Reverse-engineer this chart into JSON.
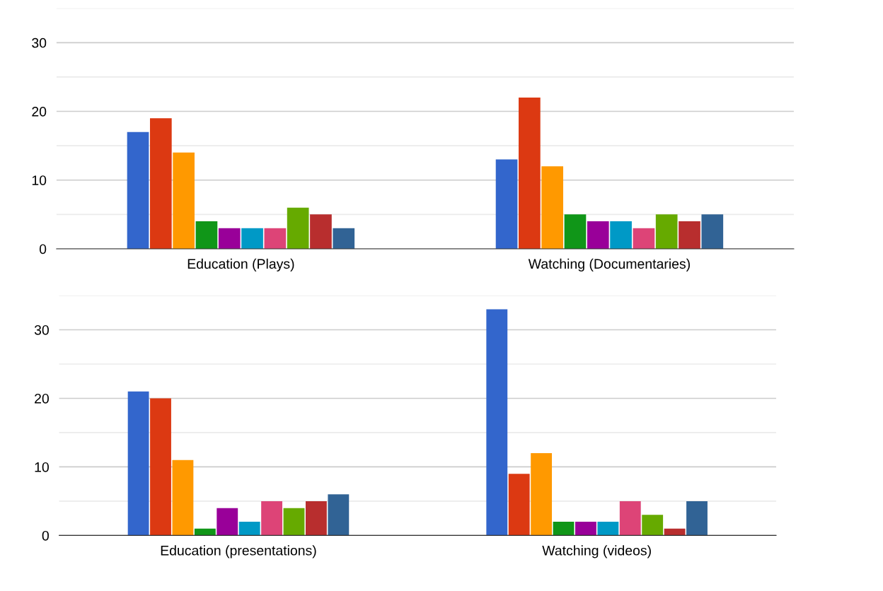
{
  "chart_data": [
    {
      "type": "bar",
      "categories": [
        "Education (Plays)",
        "Watching (Documentaries)"
      ],
      "ylim": [
        0,
        35
      ],
      "yticks": [
        0,
        {
          "value": 5,
          "label": null
        },
        10,
        {
          "value": 15,
          "label": null
        },
        20,
        {
          "value": 25,
          "label": null
        },
        30,
        {
          "value": 35,
          "label": null
        }
      ],
      "grid": "y",
      "series": [
        {
          "color": "#3366cc",
          "values": [
            17,
            13
          ]
        },
        {
          "color": "#dc3912",
          "values": [
            19,
            22
          ]
        },
        {
          "color": "#ff9900",
          "values": [
            14,
            12
          ]
        },
        {
          "color": "#109618",
          "values": [
            4,
            5
          ]
        },
        {
          "color": "#990099",
          "values": [
            3,
            4
          ]
        },
        {
          "color": "#0099c6",
          "values": [
            3,
            4
          ]
        },
        {
          "color": "#dd4477",
          "values": [
            3,
            3
          ]
        },
        {
          "color": "#66aa00",
          "values": [
            6,
            5
          ]
        },
        {
          "color": "#b82e2e",
          "values": [
            5,
            4
          ]
        },
        {
          "color": "#316395",
          "values": [
            3,
            5
          ]
        }
      ]
    },
    {
      "type": "bar",
      "categories": [
        "Education (presentations)",
        "Watching (videos)"
      ],
      "ylim": [
        0,
        35
      ],
      "yticks": [
        0,
        {
          "value": 5,
          "label": null
        },
        10,
        {
          "value": 15,
          "label": null
        },
        20,
        {
          "value": 25,
          "label": null
        },
        30,
        {
          "value": 35,
          "label": null
        }
      ],
      "grid": "y",
      "series": [
        {
          "color": "#3366cc",
          "values": [
            21,
            33
          ]
        },
        {
          "color": "#dc3912",
          "values": [
            20,
            9
          ]
        },
        {
          "color": "#ff9900",
          "values": [
            11,
            12
          ]
        },
        {
          "color": "#109618",
          "values": [
            1,
            2
          ]
        },
        {
          "color": "#990099",
          "values": [
            4,
            2
          ]
        },
        {
          "color": "#0099c6",
          "values": [
            2,
            2
          ]
        },
        {
          "color": "#dd4477",
          "values": [
            5,
            5
          ]
        },
        {
          "color": "#66aa00",
          "values": [
            4,
            3
          ]
        },
        {
          "color": "#b82e2e",
          "values": [
            5,
            1
          ]
        },
        {
          "color": "#316395",
          "values": [
            6,
            5
          ]
        }
      ]
    }
  ]
}
